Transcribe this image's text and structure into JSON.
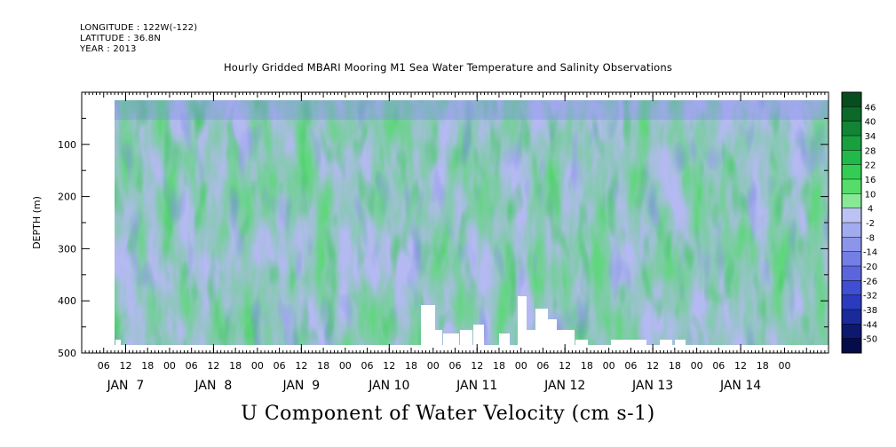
{
  "header": {
    "longitude": "LONGITUDE : 122W(-122)",
    "latitude": "LATITUDE : 36.8N",
    "year": "YEAR : 2013"
  },
  "title": "Hourly Gridded MBARI Mooring M1 Sea Water Temperature and Salinity Observations",
  "chart_data": {
    "type": "heatmap",
    "title": "U Component of Water Velocity (cm s-1)",
    "ylabel": "DEPTH (m)",
    "xlabel": "",
    "y_ticks": [
      "100",
      "200",
      "300",
      "400",
      "500"
    ],
    "y_tick_values": [
      100,
      200,
      300,
      400,
      500
    ],
    "ylim": [
      500,
      0
    ],
    "y_inverted": true,
    "x_hour_labels": [
      "06",
      "12",
      "18",
      "00",
      "06",
      "12",
      "18",
      "00",
      "06",
      "12",
      "18",
      "00",
      "06",
      "12",
      "18",
      "00",
      "06",
      "12",
      "18",
      "00",
      "06",
      "12",
      "18",
      "00",
      "06",
      "12",
      "18",
      "00",
      "06",
      "12",
      "18",
      "00"
    ],
    "x_hour_values": [
      6,
      12,
      18,
      24,
      30,
      36,
      42,
      48,
      54,
      60,
      66,
      72,
      78,
      84,
      90,
      96,
      102,
      108,
      114,
      120,
      126,
      132,
      138,
      144,
      150,
      156,
      162,
      168,
      174,
      180,
      186,
      192
    ],
    "x_day_labels": [
      "JAN  7",
      "JAN  8",
      "JAN  9",
      "JAN 10",
      "JAN 11",
      "JAN 12",
      "JAN 13",
      "JAN 14"
    ],
    "x_day_values": [
      12,
      36,
      60,
      84,
      108,
      132,
      156,
      180
    ],
    "xlim_hours": [
      0,
      204
    ],
    "data_start_hour": 8,
    "colorbar_labels": [
      "46",
      "40",
      "34",
      "28",
      "22",
      "16",
      "10",
      "4",
      "-2",
      "-8",
      "-14",
      "-20",
      "-26",
      "-32",
      "-38",
      "-44",
      "-50"
    ],
    "colorbar_values": [
      46,
      40,
      34,
      28,
      22,
      16,
      10,
      4,
      -2,
      -8,
      -14,
      -20,
      -26,
      -32,
      -38,
      -44,
      -50
    ],
    "colorbar_colors": [
      "#064d1f",
      "#0b6a2a",
      "#118535",
      "#18a03f",
      "#21b94a",
      "#33cc55",
      "#55dd6a",
      "#88e895",
      "#bcc3f4",
      "#a3abef",
      "#8c95ea",
      "#737fe4",
      "#5b66dc",
      "#3f4ed2",
      "#2a3bc0",
      "#1a2a9a",
      "#0d1870",
      "#050c4a"
    ],
    "legend_position": "right",
    "grid": false
  }
}
